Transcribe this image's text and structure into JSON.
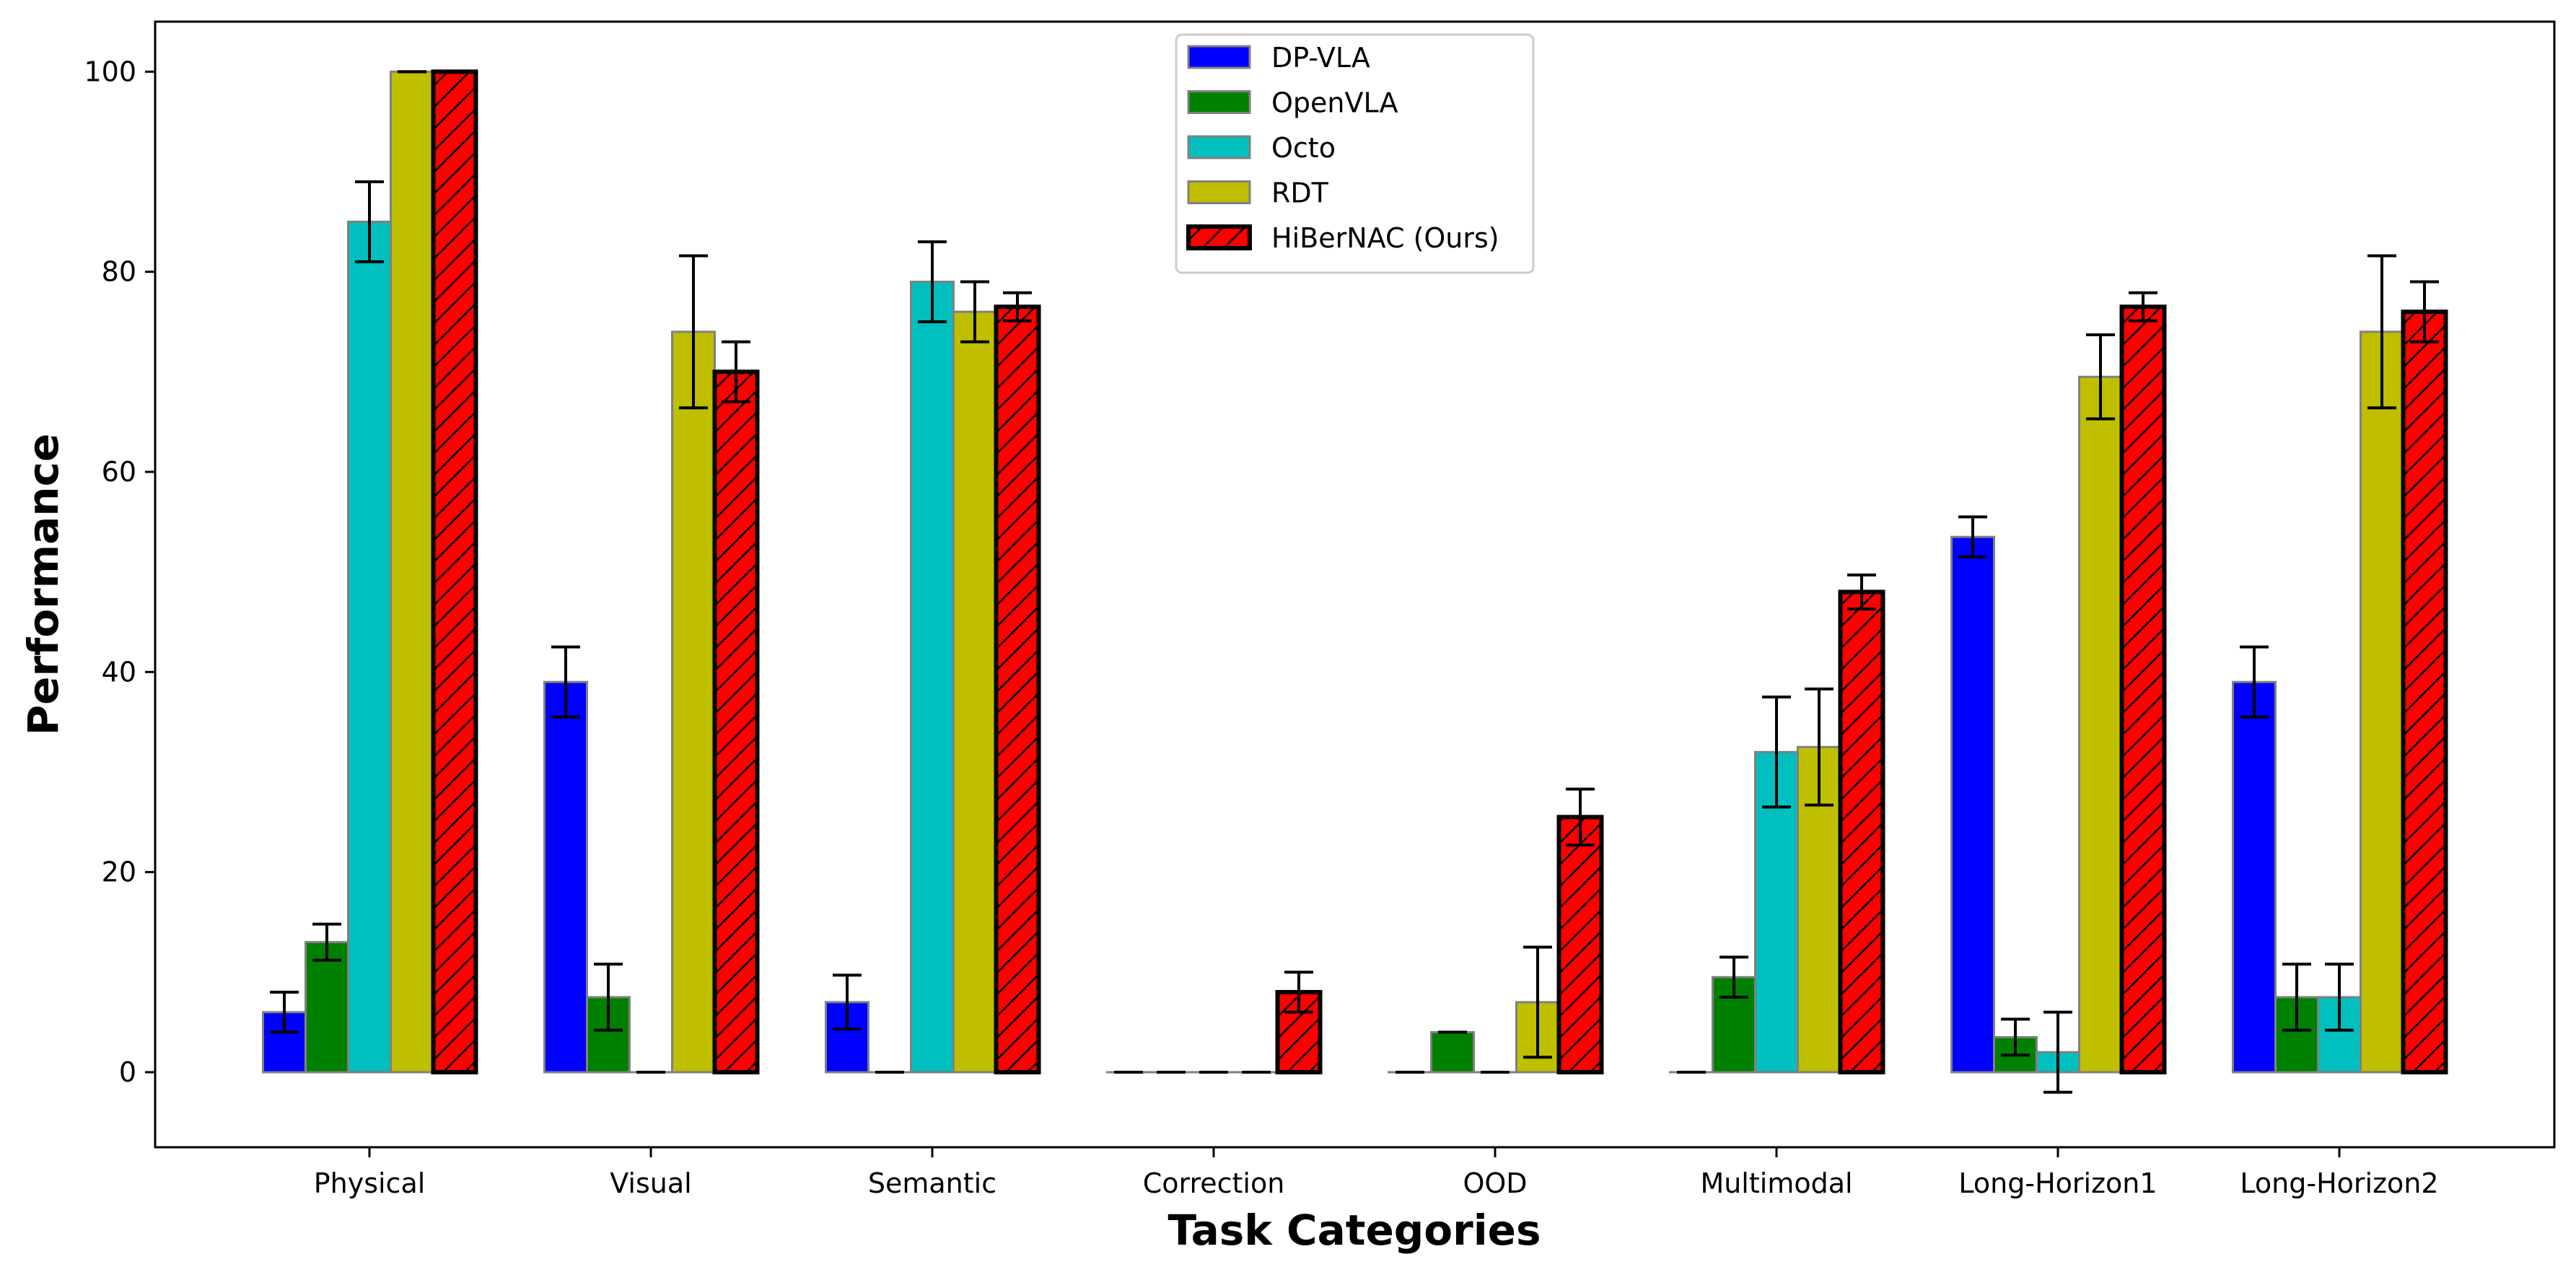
{
  "chart_data": {
    "type": "bar",
    "title": "",
    "xlabel": "Task Categories",
    "ylabel": "Performance",
    "ylim": [
      -7.5,
      105
    ],
    "yticks": [
      0,
      20,
      40,
      60,
      80,
      100
    ],
    "grid": false,
    "legend_position": "top-center",
    "categories": [
      "Physical",
      "Visual",
      "Semantic",
      "Correction",
      "OOD",
      "Multimodal",
      "Long-Horizon1",
      "Long-Horizon2"
    ],
    "series": [
      {
        "name": "DP-VLA",
        "color": "#0000ff",
        "hatch": false,
        "values": [
          6,
          39,
          7,
          0,
          0,
          0,
          53.5,
          39
        ],
        "errors": [
          2,
          3.5,
          2.7,
          0,
          0,
          0,
          2,
          3.5
        ]
      },
      {
        "name": "OpenVLA",
        "color": "#008000",
        "hatch": false,
        "values": [
          13,
          7.5,
          0,
          0,
          4,
          9.5,
          3.5,
          7.5
        ],
        "errors": [
          1.8,
          3.3,
          0,
          0,
          0,
          2,
          1.8,
          3.3
        ]
      },
      {
        "name": "Octo",
        "color": "#00bfbf",
        "hatch": false,
        "values": [
          85,
          0,
          79,
          0,
          0,
          32,
          2,
          7.5
        ],
        "errors": [
          4,
          0,
          4,
          0,
          0,
          5.5,
          4,
          3.3
        ]
      },
      {
        "name": "RDT",
        "color": "#bfbf00",
        "hatch": false,
        "values": [
          100,
          74,
          76,
          0,
          7,
          32.5,
          69.5,
          74
        ],
        "errors": [
          0,
          7.6,
          3,
          0,
          5.5,
          5.8,
          4.2,
          7.6
        ]
      },
      {
        "name": "HiBerNAC (Ours)",
        "color": "#ff0000",
        "hatch": true,
        "values": [
          100,
          70,
          76.5,
          8,
          25.5,
          48,
          76.5,
          76
        ],
        "errors": [
          0,
          3,
          1.4,
          2,
          2.8,
          1.7,
          1.4,
          3
        ]
      }
    ]
  }
}
